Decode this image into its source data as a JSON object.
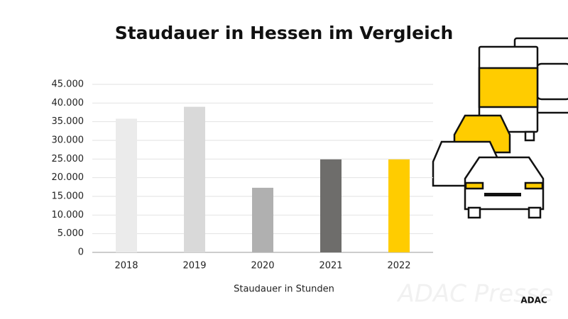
{
  "chart_data": {
    "type": "bar",
    "title": "Staudauer in Hessen im Vergleich",
    "x_label": "Staudauer in Stunden",
    "categories": [
      "2018",
      "2019",
      "2020",
      "2021",
      "2022"
    ],
    "values": [
      35800,
      39000,
      17300,
      24900,
      24900
    ],
    "colors": [
      "#ebebeb",
      "#d9d9d9",
      "#b0b0b0",
      "#6e6d6b",
      "#ffcc00"
    ],
    "ylim": [
      0,
      45000
    ],
    "yticks": [
      0,
      {
        "value": 5000,
        "label": "5.000"
      },
      {
        "value": 10000,
        "label": "10.000"
      },
      {
        "value": 15000,
        "label": "15.000"
      },
      {
        "value": 20000,
        "label": "20.000"
      },
      {
        "value": 25000,
        "label": "25.000"
      },
      {
        "value": 30000,
        "label": "30.000"
      },
      {
        "value": 35000,
        "label": "35.000"
      },
      {
        "value": 40000,
        "label": "40.000"
      },
      {
        "value": 45000,
        "label": "45.000"
      }
    ],
    "grid": true
  },
  "watermark": "ADAC Presse",
  "logo": "ADAC"
}
